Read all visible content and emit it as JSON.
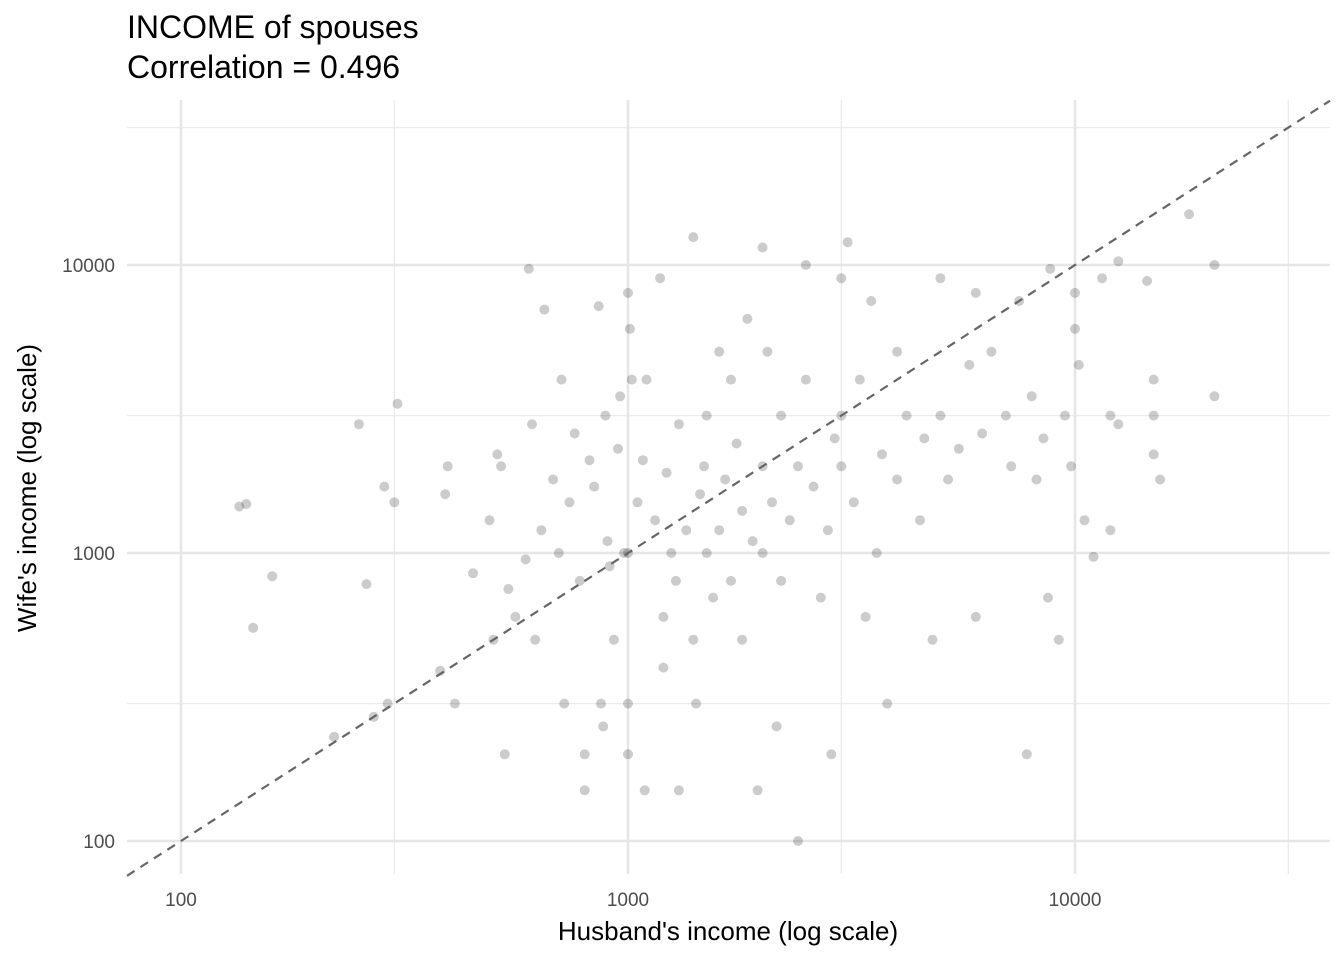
{
  "chart_data": {
    "type": "scatter",
    "title": "INCOME of spouses",
    "subtitle": "Correlation = 0.496",
    "xlabel": "Husband's income (log scale)",
    "ylabel": "Wife's income (log scale)",
    "x_scale": "log10",
    "y_scale": "log10",
    "xlim": [
      79,
      35000
    ],
    "ylim": [
      79,
      32000
    ],
    "x_ticks": [
      100,
      1000,
      10000
    ],
    "x_tick_labels": [
      "100",
      "1000",
      "10000"
    ],
    "y_ticks": [
      100,
      1000,
      10000
    ],
    "y_tick_labels": [
      "100",
      "1000",
      "10000"
    ],
    "x_minor_gridlines": [
      300,
      3000,
      30000
    ],
    "y_minor_gridlines": [
      300,
      3000,
      30000
    ],
    "grid": true,
    "reference_line": {
      "slope": 1,
      "intercept": 0,
      "style": "dashed",
      "color": "#666666"
    },
    "point_color": "#000000",
    "point_opacity": 0.2,
    "correlation": 0.496,
    "points": [
      [
        135,
        1450
      ],
      [
        140,
        1480
      ],
      [
        145,
        550
      ],
      [
        160,
        830
      ],
      [
        220,
        230
      ],
      [
        250,
        2800
      ],
      [
        260,
        780
      ],
      [
        270,
        270
      ],
      [
        285,
        1700
      ],
      [
        290,
        300
      ],
      [
        300,
        1500
      ],
      [
        305,
        3300
      ],
      [
        380,
        390
      ],
      [
        395,
        2000
      ],
      [
        390,
        1600
      ],
      [
        410,
        300
      ],
      [
        450,
        850
      ],
      [
        490,
        1300
      ],
      [
        500,
        500
      ],
      [
        510,
        2200
      ],
      [
        520,
        2000
      ],
      [
        530,
        200
      ],
      [
        540,
        750
      ],
      [
        560,
        600
      ],
      [
        590,
        950
      ],
      [
        600,
        9700
      ],
      [
        610,
        2800
      ],
      [
        620,
        500
      ],
      [
        640,
        1200
      ],
      [
        650,
        7000
      ],
      [
        680,
        1800
      ],
      [
        700,
        1000
      ],
      [
        710,
        4000
      ],
      [
        720,
        300
      ],
      [
        740,
        1500
      ],
      [
        760,
        2600
      ],
      [
        780,
        800
      ],
      [
        800,
        200
      ],
      [
        800,
        150
      ],
      [
        820,
        2100
      ],
      [
        840,
        1700
      ],
      [
        860,
        7200
      ],
      [
        870,
        300
      ],
      [
        880,
        250
      ],
      [
        890,
        3000
      ],
      [
        900,
        1100
      ],
      [
        910,
        900
      ],
      [
        930,
        500
      ],
      [
        950,
        2300
      ],
      [
        960,
        3500
      ],
      [
        980,
        1000
      ],
      [
        1000,
        1000
      ],
      [
        1000,
        8000
      ],
      [
        1010,
        6000
      ],
      [
        1020,
        4000
      ],
      [
        1000,
        300
      ],
      [
        1000,
        200
      ],
      [
        1050,
        1500
      ],
      [
        1080,
        2100
      ],
      [
        1090,
        150
      ],
      [
        1100,
        4000
      ],
      [
        1150,
        1300
      ],
      [
        1180,
        9000
      ],
      [
        1200,
        400
      ],
      [
        1200,
        600
      ],
      [
        1220,
        1900
      ],
      [
        1250,
        1000
      ],
      [
        1280,
        800
      ],
      [
        1300,
        150
      ],
      [
        1300,
        2800
      ],
      [
        1350,
        1200
      ],
      [
        1400,
        12500
      ],
      [
        1400,
        500
      ],
      [
        1420,
        300
      ],
      [
        1450,
        1600
      ],
      [
        1480,
        2000
      ],
      [
        1500,
        1000
      ],
      [
        1500,
        3000
      ],
      [
        1550,
        700
      ],
      [
        1600,
        5000
      ],
      [
        1600,
        1200
      ],
      [
        1650,
        1800
      ],
      [
        1700,
        800
      ],
      [
        1700,
        4000
      ],
      [
        1750,
        2400
      ],
      [
        1800,
        1400
      ],
      [
        1800,
        500
      ],
      [
        1850,
        6500
      ],
      [
        1900,
        1100
      ],
      [
        1950,
        150
      ],
      [
        2000,
        2000
      ],
      [
        2000,
        1000
      ],
      [
        2000,
        11500
      ],
      [
        2050,
        5000
      ],
      [
        2100,
        1500
      ],
      [
        2150,
        250
      ],
      [
        2200,
        800
      ],
      [
        2200,
        3000
      ],
      [
        2300,
        1300
      ],
      [
        2400,
        100
      ],
      [
        2400,
        2000
      ],
      [
        2500,
        10000
      ],
      [
        2500,
        4000
      ],
      [
        2600,
        1700
      ],
      [
        2700,
        700
      ],
      [
        2800,
        1200
      ],
      [
        2850,
        200
      ],
      [
        2900,
        2500
      ],
      [
        3000,
        3000
      ],
      [
        3000,
        2000
      ],
      [
        3000,
        9000
      ],
      [
        3100,
        12000
      ],
      [
        3200,
        1500
      ],
      [
        3300,
        4000
      ],
      [
        3400,
        600
      ],
      [
        3500,
        7500
      ],
      [
        3600,
        1000
      ],
      [
        3700,
        2200
      ],
      [
        3800,
        300
      ],
      [
        4000,
        5000
      ],
      [
        4000,
        1800
      ],
      [
        4200,
        3000
      ],
      [
        4500,
        1300
      ],
      [
        4600,
        2500
      ],
      [
        4800,
        500
      ],
      [
        5000,
        9000
      ],
      [
        5000,
        3000
      ],
      [
        5200,
        1800
      ],
      [
        5500,
        2300
      ],
      [
        5800,
        4500
      ],
      [
        6000,
        8000
      ],
      [
        6000,
        600
      ],
      [
        6200,
        2600
      ],
      [
        6500,
        5000
      ],
      [
        7000,
        3000
      ],
      [
        7200,
        2000
      ],
      [
        7500,
        7500
      ],
      [
        7800,
        200
      ],
      [
        8000,
        3500
      ],
      [
        8200,
        1800
      ],
      [
        8500,
        2500
      ],
      [
        8700,
        700
      ],
      [
        8800,
        9700
      ],
      [
        9200,
        500
      ],
      [
        9500,
        3000
      ],
      [
        9800,
        2000
      ],
      [
        10000,
        6000
      ],
      [
        10000,
        8000
      ],
      [
        10200,
        4500
      ],
      [
        10500,
        1300
      ],
      [
        11000,
        970
      ],
      [
        11500,
        9000
      ],
      [
        12000,
        3000
      ],
      [
        12000,
        1200
      ],
      [
        12500,
        2800
      ],
      [
        12500,
        10300
      ],
      [
        14500,
        8800
      ],
      [
        15000,
        4000
      ],
      [
        15000,
        3000
      ],
      [
        15000,
        2200
      ],
      [
        15500,
        1800
      ],
      [
        18000,
        15000
      ],
      [
        20500,
        10000
      ],
      [
        20500,
        3500
      ]
    ]
  }
}
